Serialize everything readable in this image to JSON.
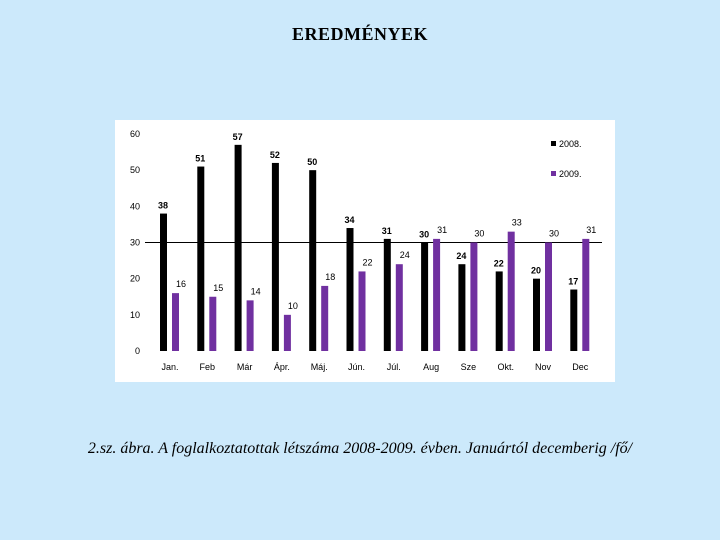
{
  "title": "EREDMÉNYEK",
  "caption": "2.sz. ábra. A foglalkoztatottak létszáma 2008-2009. évben. Januártól decemberig /fő/",
  "chart_data": {
    "type": "bar",
    "categories": [
      "Jan.",
      "Feb",
      "Már",
      "Ápr.",
      "Máj.",
      "Jún.",
      "Júl.",
      "Aug",
      "Sze",
      "Okt.",
      "Nov",
      "Dec"
    ],
    "series": [
      {
        "name": "2008.",
        "color": "#000000",
        "values": [
          38,
          51,
          57,
          52,
          50,
          34,
          31,
          30,
          24,
          22,
          20,
          17
        ]
      },
      {
        "name": "2009.",
        "color": "#7030a0",
        "values": [
          16,
          15,
          14,
          10,
          18,
          22,
          24,
          31,
          30,
          33,
          30,
          31
        ]
      }
    ],
    "yticks": [
      "0",
      "10",
      "20",
      "30",
      "40",
      "50",
      "60"
    ],
    "ylim": [
      0,
      60
    ],
    "reference_line": 30,
    "legend_position": "top-right",
    "grid": false
  }
}
